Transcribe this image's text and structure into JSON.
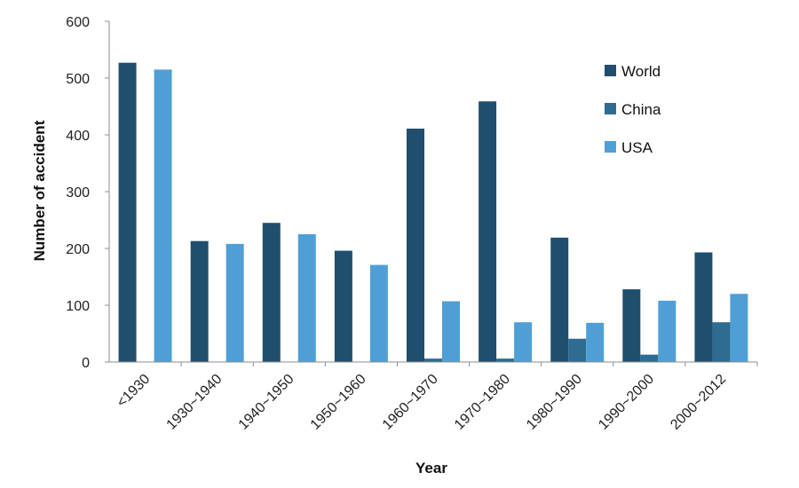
{
  "chart_data": {
    "type": "bar",
    "title": "",
    "xlabel": "Year",
    "ylabel": "Number of accident",
    "ylim": [
      0,
      600
    ],
    "yticks": [
      0,
      100,
      200,
      300,
      400,
      500,
      600
    ],
    "categories": [
      "<1930",
      "1930~1940",
      "1940~1950",
      "1950~1960",
      "1960~1970",
      "1970~1980",
      "1980~1990",
      "1990~2000",
      "2000~2012"
    ],
    "series": [
      {
        "name": "World",
        "color": "#1f4e6e",
        "values": [
          527,
          213,
          245,
          196,
          411,
          459,
          219,
          128,
          193
        ]
      },
      {
        "name": "China",
        "color": "#2e6c92",
        "values": [
          0,
          0,
          0,
          0,
          6,
          6,
          41,
          13,
          70
        ]
      },
      {
        "name": "USA",
        "color": "#4f9fd6",
        "values": [
          515,
          208,
          225,
          171,
          107,
          70,
          69,
          108,
          120
        ]
      }
    ],
    "legend_position": "top-right",
    "grid": false
  }
}
